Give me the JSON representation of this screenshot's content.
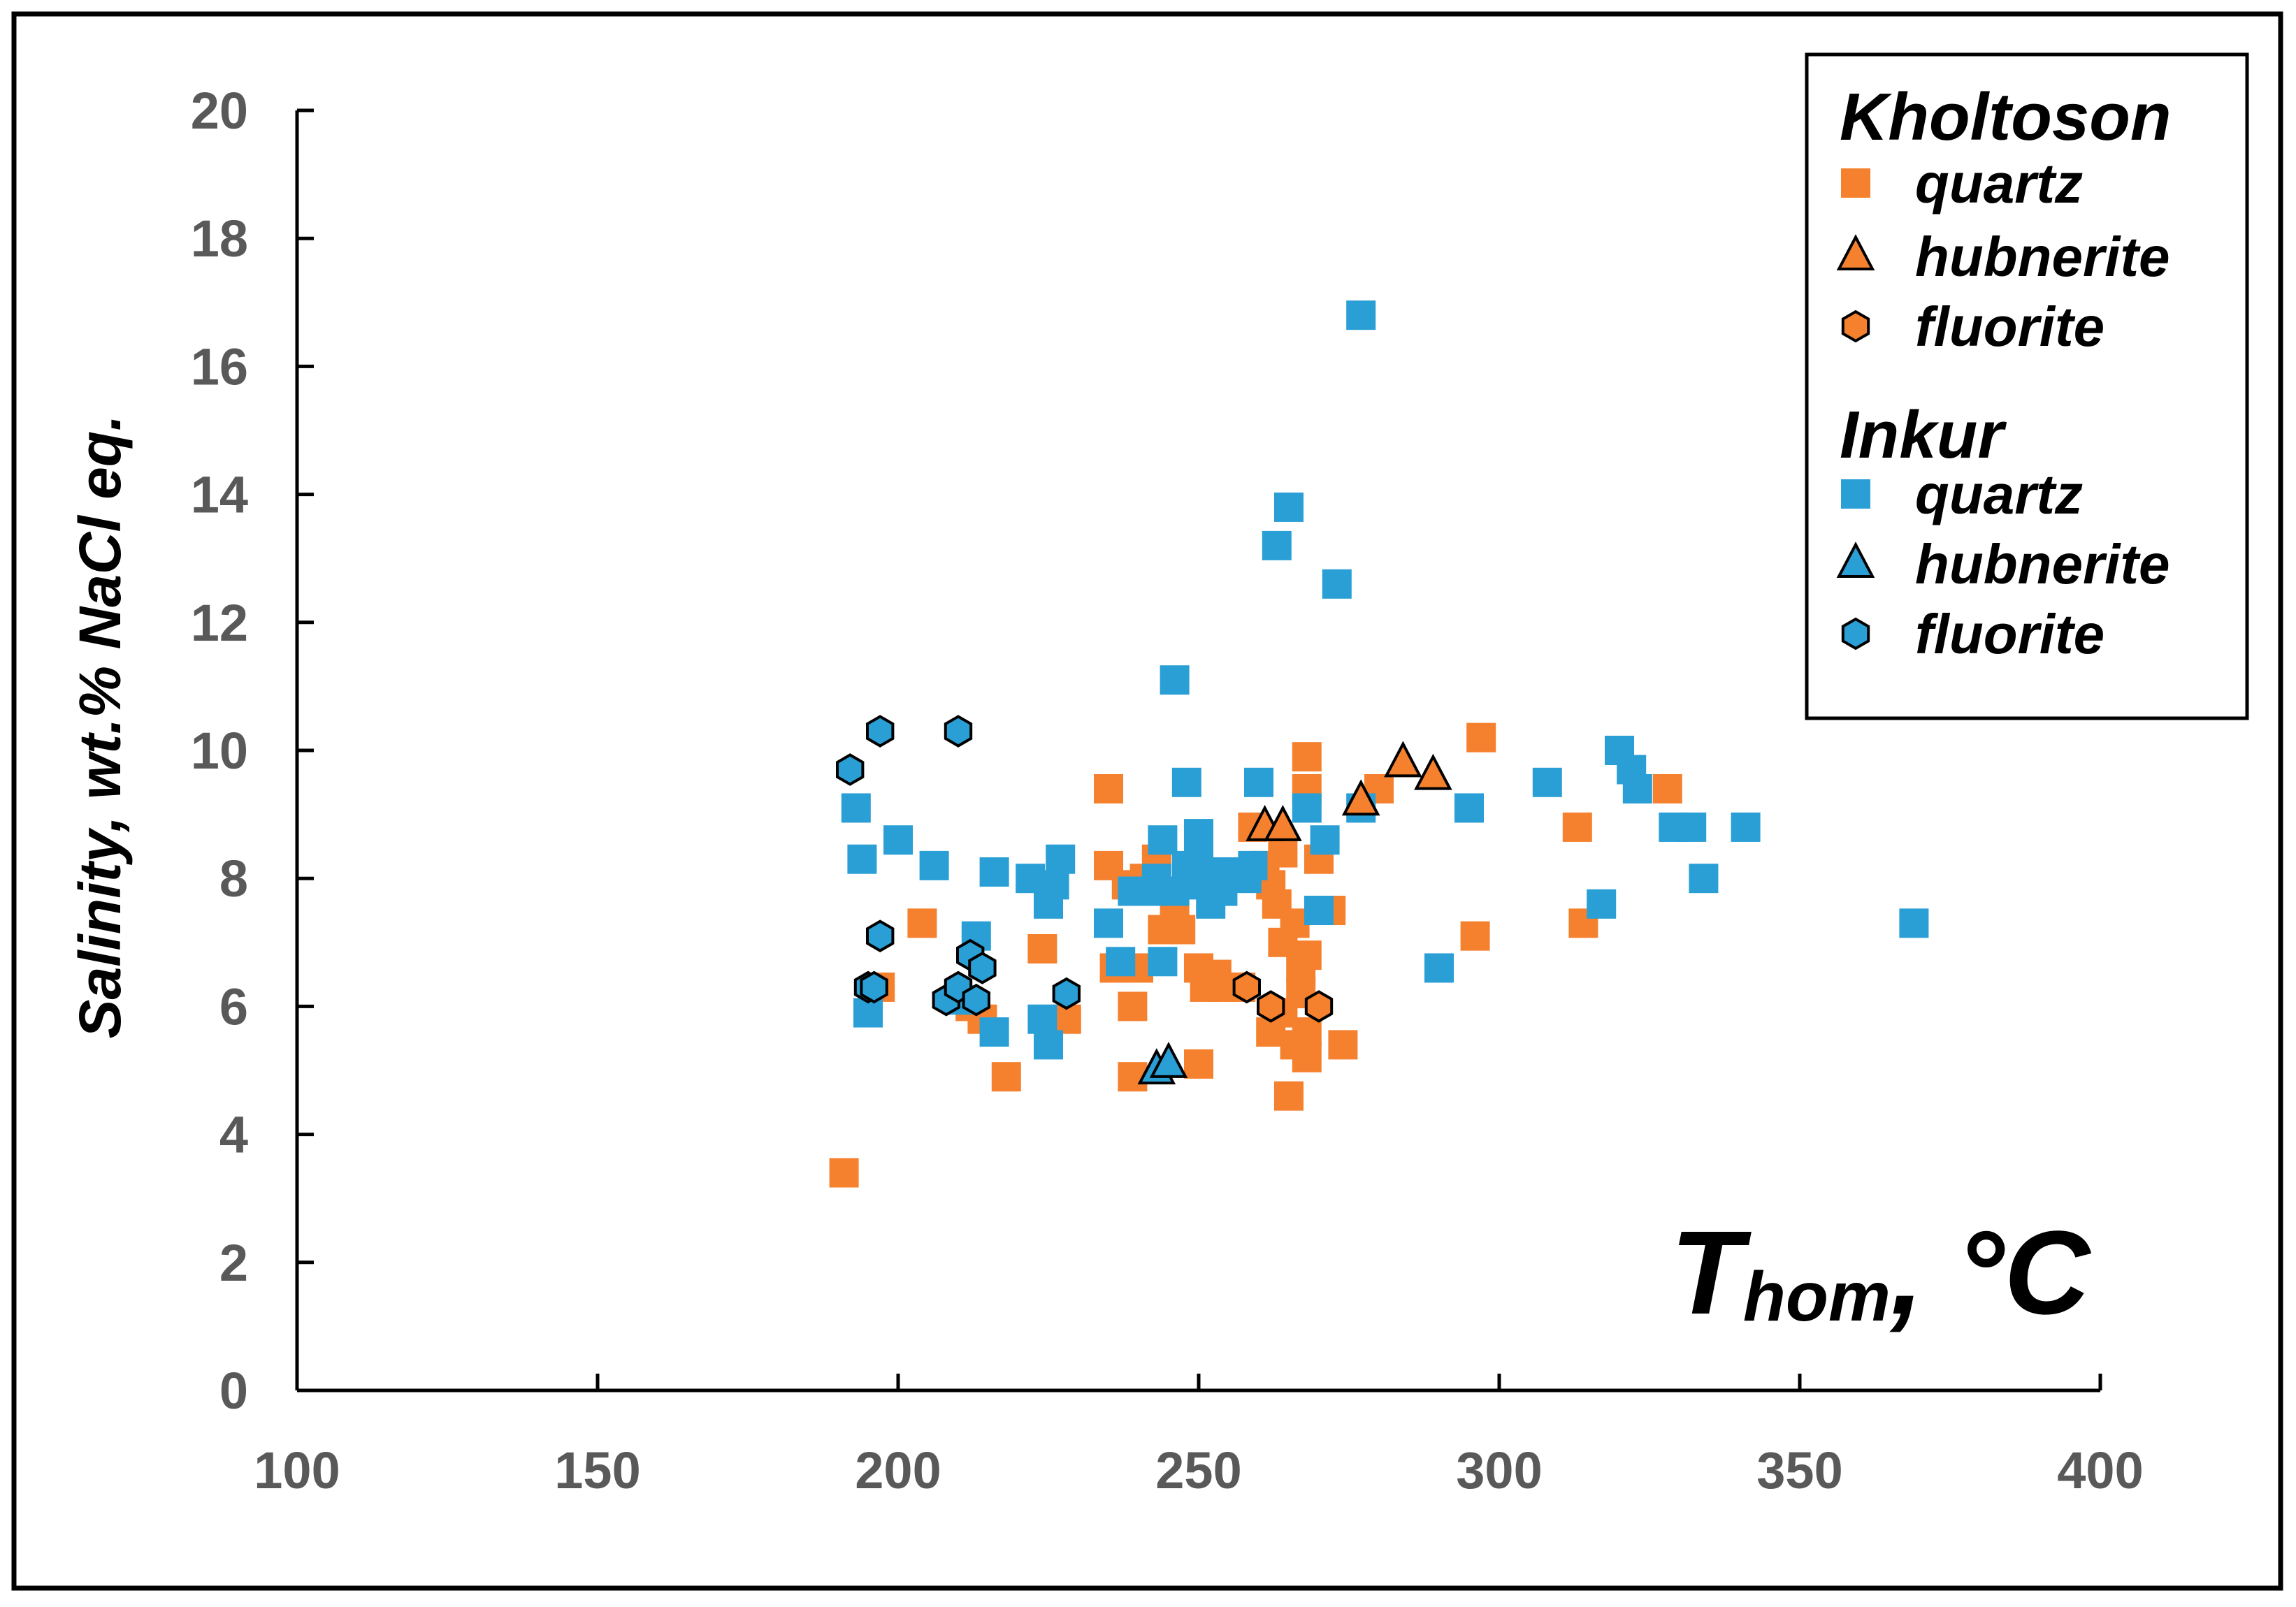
{
  "colors": {
    "kholtoson": "#F5812F",
    "inkur": "#2A9FD6",
    "axis": "#000000",
    "tick_text": "#595959"
  },
  "chart_data": {
    "type": "scatter",
    "title": "",
    "xlabel": "T",
    "xlabel_sub": "hom",
    "xlabel_unit": ", °C",
    "ylabel": "Salinity, wt.% NaCl eq.",
    "xlim": [
      100,
      400
    ],
    "ylim": [
      0,
      20
    ],
    "xticks": [
      "100",
      "150",
      "200",
      "250",
      "300",
      "350",
      "400"
    ],
    "yticks": [
      "0",
      "2",
      "4",
      "6",
      "8",
      "10",
      "12",
      "14",
      "16",
      "18",
      "20"
    ],
    "legend_position": "top-right",
    "legend": {
      "groups": [
        {
          "name": "Kholtoson",
          "items": [
            {
              "label": "quartz",
              "marker": "square",
              "color": "#F5812F"
            },
            {
              "label": "hubnerite",
              "marker": "triangle",
              "color": "#F5812F"
            },
            {
              "label": "fluorite",
              "marker": "hexagon",
              "color": "#F5812F"
            }
          ]
        },
        {
          "name": "Inkur",
          "items": [
            {
              "label": "quartz",
              "marker": "square",
              "color": "#2A9FD6"
            },
            {
              "label": "hubnerite",
              "marker": "triangle",
              "color": "#2A9FD6"
            },
            {
              "label": "fluorite",
              "marker": "hexagon",
              "color": "#2A9FD6"
            }
          ]
        }
      ]
    },
    "series": [
      {
        "name": "Kholtoson quartz",
        "marker": "square",
        "color": "#F5812F",
        "points": [
          [
            191,
            3.4
          ],
          [
            197,
            6.3
          ],
          [
            204,
            7.3
          ],
          [
            212,
            6.0
          ],
          [
            214,
            5.8
          ],
          [
            218,
            4.9
          ],
          [
            224,
            6.9
          ],
          [
            228,
            5.8
          ],
          [
            235,
            9.4
          ],
          [
            235,
            8.2
          ],
          [
            236,
            6.6
          ],
          [
            238,
            7.9
          ],
          [
            239,
            6.0
          ],
          [
            239,
            4.9
          ],
          [
            240,
            6.6
          ],
          [
            241,
            8.0
          ],
          [
            243,
            8.3
          ],
          [
            244,
            7.2
          ],
          [
            246,
            7.5
          ],
          [
            247,
            7.2
          ],
          [
            250,
            6.6
          ],
          [
            251,
            6.3
          ],
          [
            250,
            5.1
          ],
          [
            253,
            6.5
          ],
          [
            254,
            6.3
          ],
          [
            257,
            6.3
          ],
          [
            259,
            8.8
          ],
          [
            261,
            8.2
          ],
          [
            262,
            7.9
          ],
          [
            263,
            7.6
          ],
          [
            264,
            8.4
          ],
          [
            264,
            7.0
          ],
          [
            262,
            5.6
          ],
          [
            264,
            5.9
          ],
          [
            265,
            4.6
          ],
          [
            266,
            5.4
          ],
          [
            266,
            7.3
          ],
          [
            267,
            6.6
          ],
          [
            267,
            6.2
          ],
          [
            268,
            6.8
          ],
          [
            268,
            5.6
          ],
          [
            268,
            5.2
          ],
          [
            268,
            9.9
          ],
          [
            268,
            9.4
          ],
          [
            270,
            8.3
          ],
          [
            272,
            7.5
          ],
          [
            274,
            5.4
          ],
          [
            280,
            9.4
          ],
          [
            296,
            7.1
          ],
          [
            297,
            10.2
          ],
          [
            313,
            8.8
          ],
          [
            314,
            7.3
          ],
          [
            328,
            9.4
          ]
        ]
      },
      {
        "name": "Kholtoson hubnerite",
        "marker": "triangle",
        "color": "#F5812F",
        "points": [
          [
            261,
            8.8
          ],
          [
            264,
            8.8
          ],
          [
            277,
            9.2
          ],
          [
            284,
            9.8
          ],
          [
            289,
            9.6
          ]
        ]
      },
      {
        "name": "Kholtoson fluorite",
        "marker": "hexagon",
        "color": "#F5812F",
        "points": [
          [
            258,
            6.3
          ],
          [
            262,
            6.0
          ],
          [
            270,
            6.0
          ]
        ]
      },
      {
        "name": "Inkur quartz",
        "marker": "square",
        "color": "#2A9FD6",
        "points": [
          [
            193,
            9.1
          ],
          [
            194,
            8.3
          ],
          [
            195,
            5.9
          ],
          [
            200,
            8.6
          ],
          [
            206,
            8.2
          ],
          [
            210,
            6.1
          ],
          [
            213,
            7.1
          ],
          [
            216,
            8.1
          ],
          [
            216,
            5.6
          ],
          [
            222,
            8.0
          ],
          [
            224,
            5.8
          ],
          [
            225,
            7.6
          ],
          [
            225,
            5.4
          ],
          [
            226,
            7.9
          ],
          [
            227,
            8.3
          ],
          [
            235,
            7.3
          ],
          [
            237,
            6.7
          ],
          [
            239,
            7.8
          ],
          [
            242,
            7.8
          ],
          [
            243,
            8.0
          ],
          [
            244,
            8.6
          ],
          [
            244,
            6.7
          ],
          [
            246,
            11.1
          ],
          [
            246,
            7.8
          ],
          [
            248,
            9.5
          ],
          [
            248,
            8.2
          ],
          [
            249,
            7.9
          ],
          [
            250,
            8.7
          ],
          [
            250,
            8.3
          ],
          [
            251,
            8.0
          ],
          [
            252,
            7.9
          ],
          [
            252,
            7.6
          ],
          [
            254,
            8.1
          ],
          [
            254,
            7.8
          ],
          [
            256,
            8.1
          ],
          [
            258,
            8.0
          ],
          [
            259,
            8.2
          ],
          [
            260,
            9.5
          ],
          [
            263,
            13.2
          ],
          [
            265,
            13.8
          ],
          [
            268,
            9.1
          ],
          [
            270,
            7.5
          ],
          [
            271,
            8.6
          ],
          [
            273,
            12.6
          ],
          [
            277,
            16.8
          ],
          [
            277,
            9.1
          ],
          [
            290,
            6.6
          ],
          [
            295,
            9.1
          ],
          [
            308,
            9.5
          ],
          [
            317,
            7.6
          ],
          [
            320,
            10.0
          ],
          [
            322,
            9.7
          ],
          [
            323,
            9.4
          ],
          [
            329,
            8.8
          ],
          [
            332,
            8.8
          ],
          [
            334,
            8.0
          ],
          [
            341,
            8.8
          ],
          [
            369,
            7.3
          ]
        ]
      },
      {
        "name": "Inkur hubnerite",
        "marker": "triangle",
        "color": "#2A9FD6",
        "points": [
          [
            243,
            5.0
          ],
          [
            245,
            5.1
          ]
        ]
      },
      {
        "name": "Inkur fluorite",
        "marker": "hexagon",
        "color": "#2A9FD6",
        "points": [
          [
            192,
            9.7
          ],
          [
            197,
            10.3
          ],
          [
            210,
            10.3
          ],
          [
            195,
            6.3
          ],
          [
            196,
            6.3
          ],
          [
            197,
            7.1
          ],
          [
            208,
            6.1
          ],
          [
            210,
            6.3
          ],
          [
            212,
            6.8
          ],
          [
            213,
            6.1
          ],
          [
            214,
            6.6
          ],
          [
            228,
            6.2
          ]
        ]
      }
    ]
  }
}
